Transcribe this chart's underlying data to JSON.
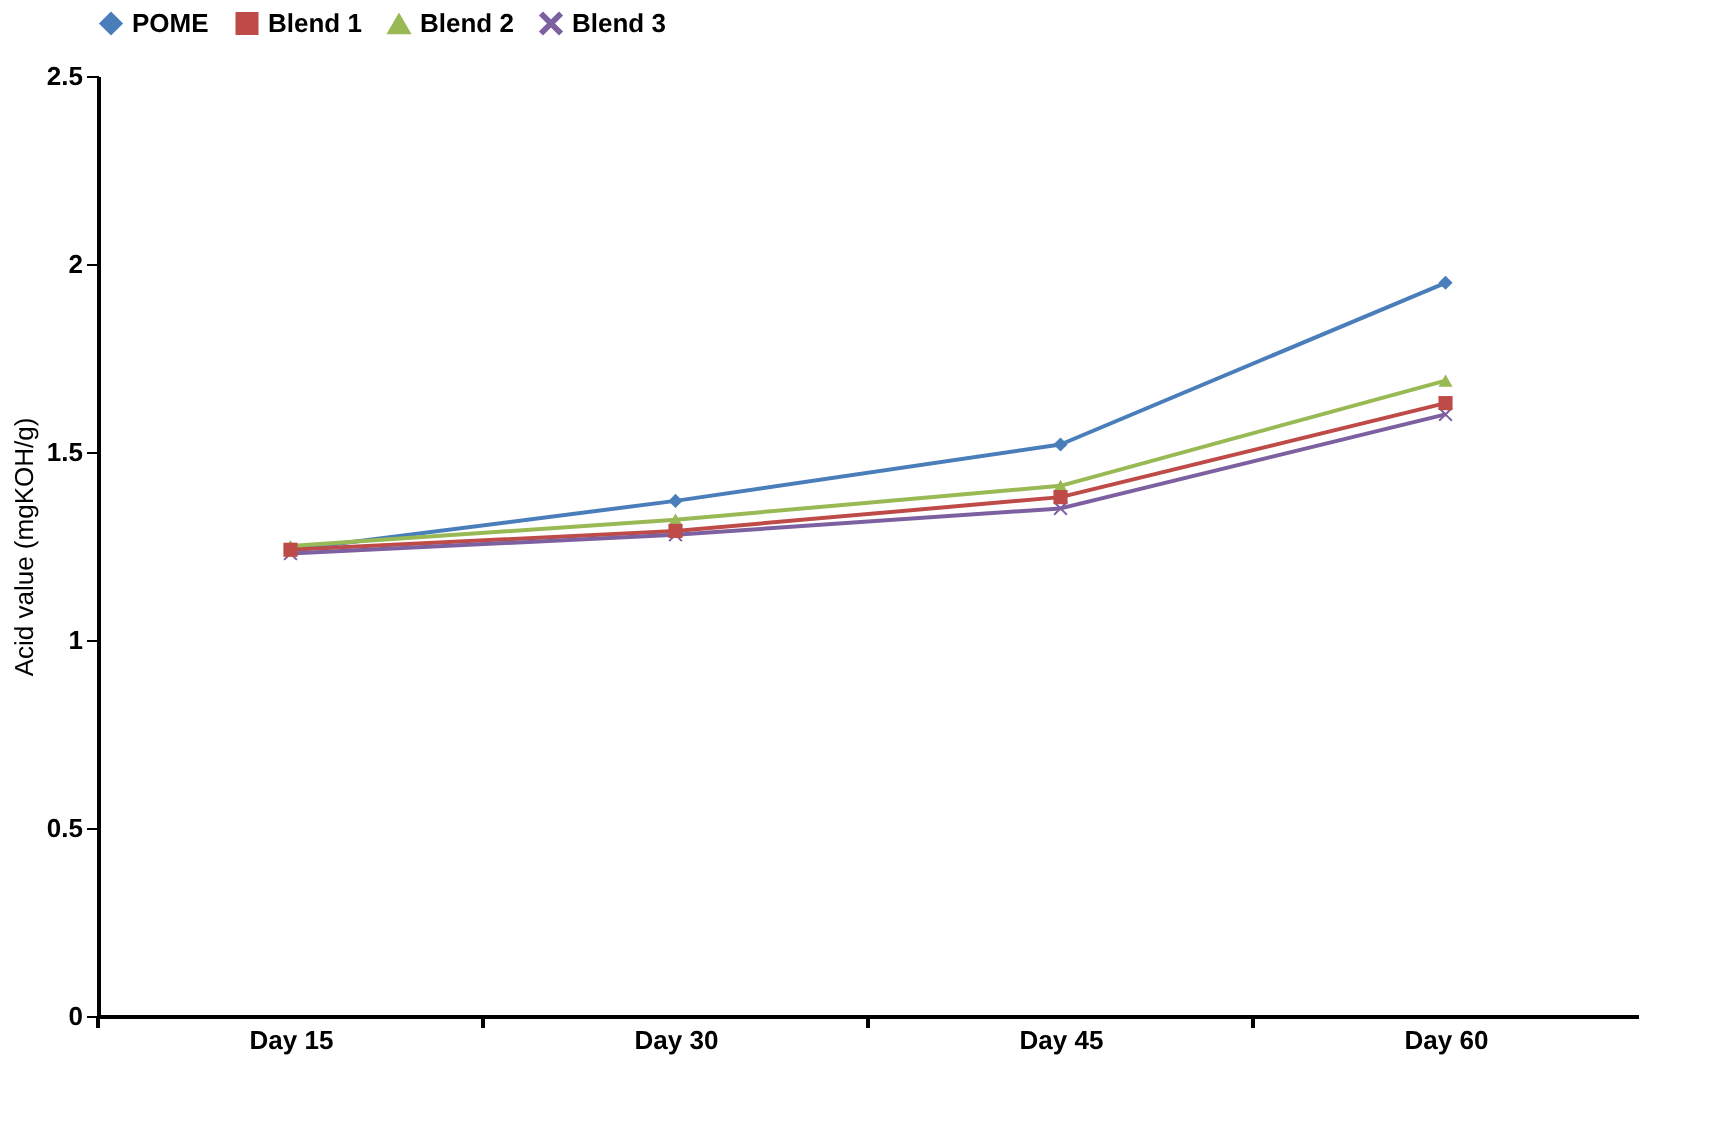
{
  "chart_data": {
    "type": "line",
    "ylabel": "Acid value (mgKOH/g)",
    "categories": [
      "Day 15",
      "Day 30",
      "Day 45",
      "Day 60"
    ],
    "series": [
      {
        "name": "POME",
        "color": "#4a7ebb",
        "marker": "diamond",
        "values": [
          1.24,
          1.37,
          1.52,
          1.95
        ]
      },
      {
        "name": "Blend 1",
        "color": "#be4b48",
        "marker": "square",
        "values": [
          1.24,
          1.29,
          1.38,
          1.63
        ]
      },
      {
        "name": "Blend 2",
        "color": "#98b954",
        "marker": "triangle",
        "values": [
          1.25,
          1.32,
          1.41,
          1.69
        ]
      },
      {
        "name": "Blend 3",
        "color": "#7d60a0",
        "marker": "cross",
        "values": [
          1.23,
          1.28,
          1.35,
          1.6
        ]
      }
    ],
    "ylim": [
      0,
      2.5
    ],
    "yticks": [
      0,
      0.5,
      1,
      1.5,
      2,
      2.5
    ],
    "grid": false,
    "legend": "top",
    "line_style": "solid"
  }
}
